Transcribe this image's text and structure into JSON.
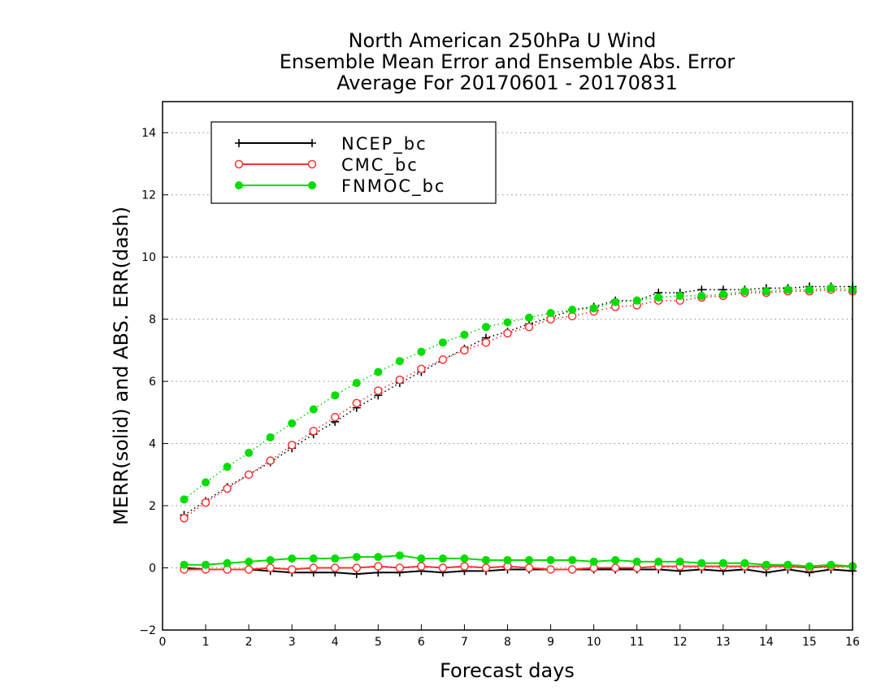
{
  "chart_data": {
    "type": "line",
    "title": [
      "North American 250hPa U Wind",
      "Ensemble Mean Error and Ensemble Abs. Error",
      "Average For 20170601 - 20170831"
    ],
    "xlabel": "Forecast days",
    "ylabel": "MERR(solid) and ABS. ERR(dash)",
    "xlim": [
      0,
      16
    ],
    "ylim": [
      -2,
      15
    ],
    "xticks": [
      0,
      1,
      2,
      3,
      4,
      5,
      6,
      7,
      8,
      9,
      10,
      11,
      12,
      13,
      14,
      15,
      16
    ],
    "yticks": [
      -2,
      0,
      2,
      4,
      6,
      8,
      10,
      12,
      14
    ],
    "grid": "dotted horizontal",
    "legend_position": "top-left",
    "x": [
      0.5,
      1,
      1.5,
      2,
      2.5,
      3,
      3.5,
      4,
      4.5,
      5,
      5.5,
      6,
      6.5,
      7,
      7.5,
      8,
      8.5,
      9,
      9.5,
      10,
      10.5,
      11,
      11.5,
      12,
      12.5,
      13,
      13.5,
      14,
      14.5,
      15,
      15.5,
      16
    ],
    "series": [
      {
        "name": "NCEP_bc",
        "color": "#000000",
        "marker": "plus",
        "abs_err": [
          1.7,
          2.15,
          2.6,
          3.0,
          3.4,
          3.85,
          4.3,
          4.7,
          5.15,
          5.55,
          5.95,
          6.3,
          6.7,
          7.05,
          7.4,
          7.6,
          7.85,
          8.05,
          8.3,
          8.4,
          8.6,
          8.6,
          8.85,
          8.85,
          8.95,
          8.95,
          8.95,
          9.0,
          9.0,
          9.05,
          9.05,
          9.05
        ],
        "mean_err": [
          0.0,
          -0.05,
          -0.05,
          -0.05,
          -0.1,
          -0.15,
          -0.15,
          -0.15,
          -0.2,
          -0.15,
          -0.15,
          -0.1,
          -0.15,
          -0.1,
          -0.1,
          -0.05,
          -0.05,
          -0.05,
          -0.05,
          -0.05,
          -0.05,
          -0.05,
          -0.05,
          -0.1,
          -0.05,
          -0.1,
          -0.05,
          -0.15,
          -0.05,
          -0.15,
          -0.05,
          -0.1
        ]
      },
      {
        "name": "CMC_bc",
        "color": "#ff3333",
        "marker": "open-circle",
        "abs_err": [
          1.6,
          2.1,
          2.55,
          3.0,
          3.45,
          3.95,
          4.4,
          4.85,
          5.3,
          5.7,
          6.05,
          6.4,
          6.7,
          7.0,
          7.25,
          7.55,
          7.75,
          8.0,
          8.1,
          8.25,
          8.4,
          8.45,
          8.6,
          8.6,
          8.7,
          8.75,
          8.85,
          8.85,
          8.9,
          8.9,
          8.95,
          8.9
        ],
        "mean_err": [
          -0.05,
          -0.05,
          -0.05,
          -0.05,
          0.0,
          -0.05,
          0.0,
          0.0,
          0.0,
          0.05,
          0.0,
          0.05,
          0.0,
          0.05,
          0.0,
          0.05,
          0.0,
          -0.05,
          -0.05,
          0.0,
          0.0,
          0.0,
          0.05,
          0.05,
          0.05,
          0.05,
          0.05,
          0.05,
          0.05,
          0.0,
          0.05,
          0.05
        ]
      },
      {
        "name": "FNMOC_bc",
        "color": "#00dd00",
        "marker": "filled-circle",
        "abs_err": [
          2.2,
          2.75,
          3.25,
          3.7,
          4.2,
          4.65,
          5.1,
          5.55,
          5.95,
          6.3,
          6.65,
          6.95,
          7.25,
          7.5,
          7.75,
          7.9,
          8.05,
          8.2,
          8.3,
          8.35,
          8.55,
          8.6,
          8.7,
          8.75,
          8.75,
          8.8,
          8.9,
          8.9,
          8.95,
          8.95,
          9.0,
          8.95
        ],
        "mean_err": [
          0.1,
          0.1,
          0.15,
          0.2,
          0.25,
          0.3,
          0.3,
          0.3,
          0.35,
          0.35,
          0.4,
          0.3,
          0.3,
          0.3,
          0.25,
          0.25,
          0.25,
          0.25,
          0.25,
          0.2,
          0.25,
          0.2,
          0.2,
          0.2,
          0.15,
          0.15,
          0.15,
          0.1,
          0.1,
          0.05,
          0.1,
          0.05
        ]
      }
    ]
  }
}
